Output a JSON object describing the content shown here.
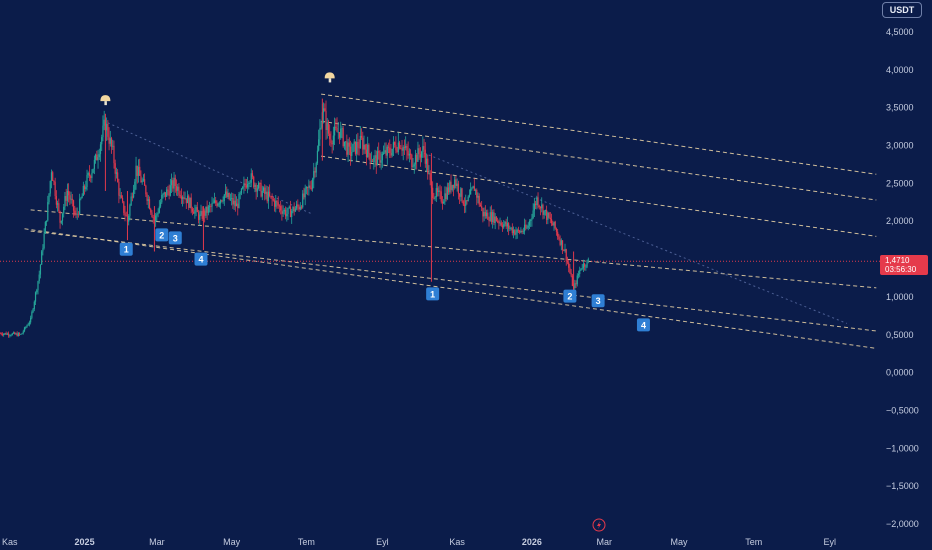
{
  "currency": "USDT",
  "price_tag": {
    "price": "1,4710",
    "countdown": "03:56:30",
    "color": "#e53a4b"
  },
  "colors": {
    "background": "#0b1c4a",
    "up": "#26a69a",
    "down": "#e0394c",
    "channel": "#f0d9a8",
    "marker": "#2f7fd4"
  },
  "icons": [
    "top-mushroom-icon",
    "top-mushroom-icon",
    "flash-icon"
  ],
  "chart_data": {
    "type": "candlestick",
    "title": "",
    "y_axis": {
      "ticks": [
        4.5,
        4.0,
        3.5,
        3.0,
        2.5,
        2.0,
        1.5,
        1.0,
        0.5,
        0.0,
        -0.5,
        -1.0,
        -1.5,
        -2.0
      ],
      "tick_labels": [
        "4,5000",
        "4,0000",
        "3,5000",
        "3,0000",
        "2,5000",
        "2,0000",
        "1,5000",
        "1,0000",
        "0,5000",
        "0,0000",
        "−0,5000",
        "−1,0000",
        "−1,5000",
        "−2,0000"
      ],
      "range": [
        -2.05,
        4.85
      ]
    },
    "x_axis": {
      "labels": [
        "Kas",
        "2025",
        "Mar",
        "May",
        "Tem",
        "Eyl",
        "Kas",
        "2026",
        "Mar",
        "May",
        "Tem",
        "Eyl"
      ],
      "dates": [
        "2024-11-01",
        "2025-01-01",
        "2025-03-01",
        "2025-05-01",
        "2025-07-01",
        "2025-09-01",
        "2025-11-01",
        "2026-01-01",
        "2026-03-01",
        "2026-05-01",
        "2026-07-01",
        "2026-09-01"
      ],
      "bold": [
        false,
        true,
        false,
        false,
        false,
        false,
        false,
        true,
        false,
        false,
        false,
        false
      ],
      "range": [
        "2024-10-24",
        "2026-10-12"
      ]
    },
    "last_price": 1.471,
    "price_path": [
      [
        "2024-10-24",
        0.52
      ],
      [
        "2024-11-10",
        0.5
      ],
      [
        "2024-11-18",
        0.7
      ],
      [
        "2024-11-25",
        1.3
      ],
      [
        "2024-12-02",
        2.2
      ],
      [
        "2024-12-05",
        2.7
      ],
      [
        "2024-12-12",
        2.0
      ],
      [
        "2024-12-18",
        2.4
      ],
      [
        "2024-12-25",
        2.05
      ],
      [
        "2025-01-02",
        2.5
      ],
      [
        "2025-01-10",
        2.8
      ],
      [
        "2025-01-18",
        3.3
      ],
      [
        "2025-01-24",
        2.9
      ],
      [
        "2025-01-30",
        2.3
      ],
      [
        "2025-02-05",
        2.0
      ],
      [
        "2025-02-12",
        2.7
      ],
      [
        "2025-02-20",
        2.4
      ],
      [
        "2025-02-27",
        2.0
      ],
      [
        "2025-03-05",
        2.3
      ],
      [
        "2025-03-15",
        2.5
      ],
      [
        "2025-03-25",
        2.3
      ],
      [
        "2025-04-05",
        2.05
      ],
      [
        "2025-04-15",
        2.2
      ],
      [
        "2025-04-25",
        2.35
      ],
      [
        "2025-05-05",
        2.2
      ],
      [
        "2025-05-15",
        2.6
      ],
      [
        "2025-05-25",
        2.4
      ],
      [
        "2025-06-05",
        2.25
      ],
      [
        "2025-06-15",
        2.1
      ],
      [
        "2025-06-25",
        2.2
      ],
      [
        "2025-07-05",
        2.5
      ],
      [
        "2025-07-10",
        2.9
      ],
      [
        "2025-07-14",
        3.5
      ],
      [
        "2025-07-20",
        3.1
      ],
      [
        "2025-07-28",
        3.2
      ],
      [
        "2025-08-05",
        2.9
      ],
      [
        "2025-08-15",
        3.05
      ],
      [
        "2025-08-25",
        2.8
      ],
      [
        "2025-09-05",
        2.9
      ],
      [
        "2025-09-15",
        3.05
      ],
      [
        "2025-09-25",
        2.8
      ],
      [
        "2025-10-05",
        2.95
      ],
      [
        "2025-10-11",
        2.4
      ],
      [
        "2025-10-20",
        2.3
      ],
      [
        "2025-10-30",
        2.55
      ],
      [
        "2025-11-08",
        2.2
      ],
      [
        "2025-11-15",
        2.45
      ],
      [
        "2025-11-22",
        2.1
      ],
      [
        "2025-12-01",
        2.05
      ],
      [
        "2025-12-10",
        1.95
      ],
      [
        "2025-12-20",
        1.85
      ],
      [
        "2025-12-28",
        1.9
      ],
      [
        "2026-01-05",
        2.3
      ],
      [
        "2026-01-12",
        2.1
      ],
      [
        "2026-01-20",
        1.9
      ],
      [
        "2026-01-28",
        1.6
      ],
      [
        "2026-02-04",
        1.1
      ],
      [
        "2026-02-10",
        1.4
      ],
      [
        "2026-02-16",
        1.47
      ]
    ],
    "wicks": [
      {
        "date": "2025-01-18",
        "high": 3.42,
        "low": 2.4
      },
      {
        "date": "2025-02-05",
        "high": 2.4,
        "low": 1.75
      },
      {
        "date": "2025-02-27",
        "high": 2.2,
        "low": 1.6
      },
      {
        "date": "2025-04-08",
        "high": 2.2,
        "low": 1.62
      },
      {
        "date": "2025-07-14",
        "high": 3.62,
        "low": 2.8
      },
      {
        "date": "2025-10-11",
        "high": 2.9,
        "low": 1.2
      },
      {
        "date": "2026-02-04",
        "high": 1.6,
        "low": 1.08
      }
    ],
    "channel_lines": [
      {
        "start": [
          "2025-07-13",
          3.68
        ],
        "end": [
          "2026-10-09",
          2.62
        ]
      },
      {
        "start": [
          "2025-07-13",
          3.32
        ],
        "end": [
          "2026-10-09",
          2.28
        ]
      },
      {
        "start": [
          "2025-07-13",
          2.86
        ],
        "end": [
          "2026-10-09",
          1.8
        ]
      },
      {
        "start": [
          "2024-11-18",
          2.15
        ],
        "end": [
          "2026-10-09",
          1.12
        ]
      },
      {
        "start": [
          "2024-11-18",
          1.87
        ],
        "end": [
          "2026-10-09",
          0.55
        ]
      },
      {
        "start": [
          "2024-11-13",
          1.9
        ],
        "end": [
          "2026-10-09",
          0.32
        ]
      }
    ],
    "guide_lines": [
      {
        "start": [
          "2025-01-20",
          3.3
        ],
        "end": [
          "2025-07-05",
          2.1
        ]
      },
      {
        "start": [
          "2025-10-05",
          2.9
        ],
        "end": [
          "2026-09-15",
          0.65
        ]
      }
    ],
    "numbered_markers": [
      {
        "label": "1",
        "date": "2025-02-04",
        "value": 1.63
      },
      {
        "label": "2",
        "date": "2025-03-05",
        "value": 1.82
      },
      {
        "label": "3",
        "date": "2025-03-16",
        "value": 1.78
      },
      {
        "label": "4",
        "date": "2025-04-06",
        "value": 1.5
      },
      {
        "label": "1",
        "date": "2025-10-12",
        "value": 1.04
      },
      {
        "label": "2",
        "date": "2026-02-01",
        "value": 1.01
      },
      {
        "label": "3",
        "date": "2026-02-24",
        "value": 0.95
      },
      {
        "label": "4",
        "date": "2026-04-02",
        "value": 0.63
      }
    ],
    "top_icons": [
      {
        "date": "2025-01-18",
        "value": 3.6
      },
      {
        "date": "2025-07-20",
        "value": 3.9
      }
    ]
  }
}
